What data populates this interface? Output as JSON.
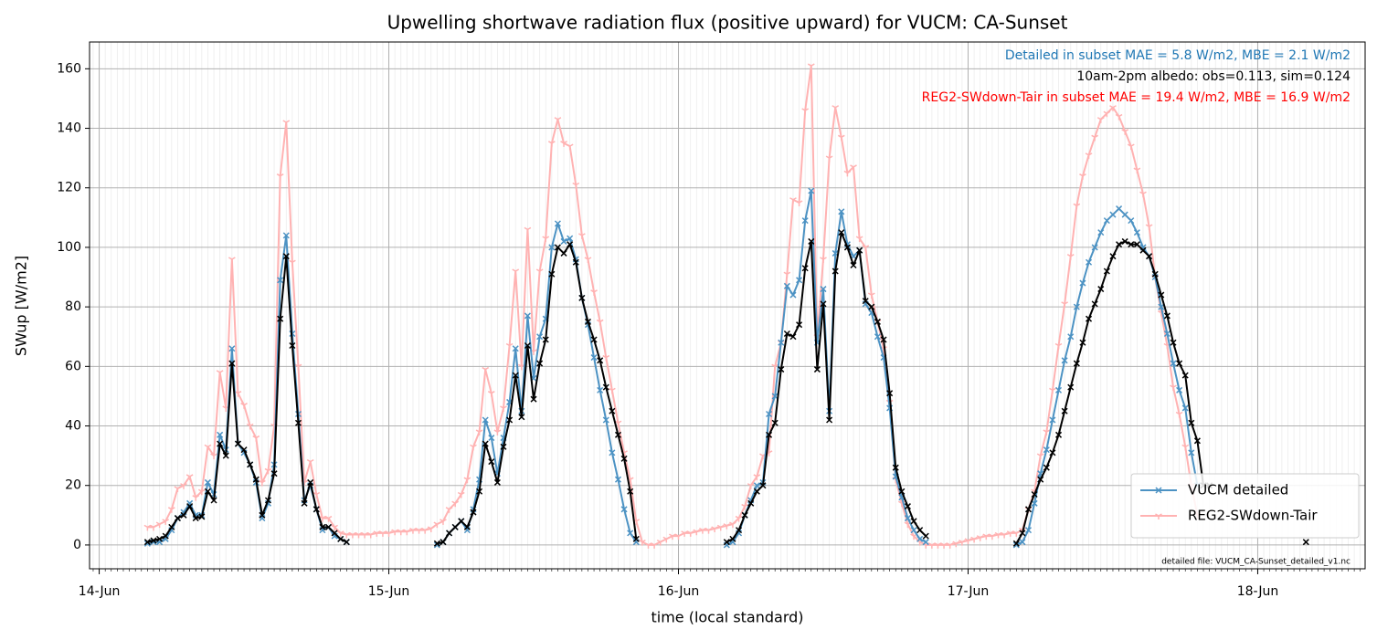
{
  "chart_data": {
    "type": "line",
    "title": "Upwelling shortwave radiation flux (positive upward) for VUCM: CA-Sunset",
    "xlabel": "time (local standard)",
    "ylabel": "SWup [W/m2]",
    "annotations": [
      {
        "text": "Detailed in subset MAE = 5.8 W/m2, MBE = 2.1 W/m2",
        "color": "#1f77b4"
      },
      {
        "text": "10am-2pm albedo: obs=0.113, sim=0.124",
        "color": "#000000"
      },
      {
        "text": "REG2-SWdown-Tair in subset MAE = 19.4 W/m2, MBE = 16.9 W/m2",
        "color": "#ff0000"
      }
    ],
    "footnote": "detailed file: VUCM_CA-Sunset_detailed_v1.nc",
    "x": [
      4,
      4.5,
      5,
      5.5,
      6,
      6.5,
      7,
      7.5,
      8,
      8.5,
      9,
      9.5,
      10,
      10.5,
      11,
      11.5,
      12,
      12.5,
      13,
      13.5,
      14,
      14.5,
      15,
      15.5,
      16,
      16.5,
      17,
      17.5,
      18,
      18.5,
      19,
      19.5,
      20,
      20.5,
      21,
      21.5,
      22,
      22.5,
      23,
      23.5,
      24,
      24.5,
      25,
      25.5,
      26,
      26.5,
      27,
      27.5,
      28,
      28.5,
      29,
      29.5,
      30,
      30.5,
      31,
      31.5,
      32,
      32.5,
      33,
      33.5,
      34,
      34.5,
      35,
      35.5,
      36,
      36.5,
      37,
      37.5,
      38,
      38.5,
      39,
      39.5,
      40,
      40.5,
      41,
      41.5,
      42,
      42.5,
      43,
      43.5,
      44,
      44.5,
      45,
      45.5,
      46,
      46.5,
      47,
      47.5,
      48,
      48.5,
      49,
      49.5,
      50,
      50.5,
      51,
      51.5,
      52,
      52.5,
      53,
      53.5,
      54,
      54.5,
      55,
      55.5,
      56,
      56.5,
      57,
      57.5,
      58,
      58.5,
      59,
      59.5,
      60,
      60.5,
      61,
      61.5,
      62,
      62.5,
      63,
      63.5,
      64,
      64.5,
      65,
      65.5,
      66,
      66.5,
      67,
      67.5,
      68,
      68.5,
      69,
      69.5,
      70,
      70.5,
      71,
      71.5,
      72,
      72.5,
      73,
      73.5,
      74,
      74.5,
      75,
      75.5,
      76,
      76.5,
      77,
      77.5,
      78,
      78.5,
      79,
      79.5,
      80,
      80.5,
      81,
      81.5,
      82,
      82.5,
      83,
      83.5,
      84,
      84.5,
      85,
      85.5,
      86,
      86.5,
      87,
      87.5,
      88,
      88.5,
      89,
      89.5,
      90,
      90.5,
      91,
      91.5,
      92,
      92.5,
      93,
      93.5,
      94,
      94.5,
      95,
      95.5,
      96,
      96.5,
      97,
      97.5,
      98,
      98.5,
      99,
      99.5,
      100
    ],
    "series": [
      {
        "name": "REG2-SWdown-Tair",
        "color": "#ffb2b2",
        "marker": "tri",
        "values": [
          6,
          6,
          7,
          8,
          12,
          19,
          20,
          23,
          16,
          18,
          33,
          30,
          58,
          46,
          96,
          51,
          47,
          40,
          36,
          21,
          25,
          40,
          124,
          142,
          95,
          60,
          21,
          28,
          17,
          9,
          9,
          6,
          4,
          3.5,
          3.5,
          3.5,
          3.5,
          3.5,
          4,
          4,
          4,
          4.5,
          4.5,
          4.5,
          5,
          5,
          5,
          5.5,
          7,
          8,
          12,
          14,
          17,
          22,
          33,
          38,
          59,
          51,
          38,
          46,
          67,
          92,
          60,
          106,
          65,
          92,
          103,
          135,
          143,
          135,
          134,
          121,
          104,
          96,
          85,
          75,
          63,
          52,
          41,
          31,
          22,
          8,
          1,
          0,
          0,
          1,
          2,
          3,
          3,
          4,
          4,
          4.5,
          5,
          5,
          5.5,
          6,
          6.5,
          7,
          9,
          13,
          20,
          23,
          30,
          31,
          60,
          68,
          91,
          116,
          115,
          146,
          161,
          70,
          96,
          130,
          147,
          137,
          125,
          127,
          103,
          100,
          84,
          75,
          66,
          48,
          22,
          14,
          7,
          3,
          1,
          0,
          0,
          0,
          0,
          0,
          0.5,
          1,
          1.5,
          2,
          2.5,
          3,
          3,
          3.5,
          3.5,
          4,
          4,
          5,
          12,
          18,
          30,
          38,
          52,
          67,
          81,
          97,
          114,
          124,
          131,
          137,
          143,
          145,
          147,
          144,
          139,
          134,
          126,
          118,
          107,
          90,
          78,
          67,
          53,
          44,
          33,
          20,
          10,
          null,
          null,
          null,
          null,
          null,
          null,
          null,
          null,
          null,
          null,
          null,
          null,
          null,
          null,
          null,
          null,
          null,
          null
        ]
      },
      {
        "name": "VUCM detailed",
        "color": "#4c92c3",
        "marker": "x",
        "values": [
          0.5,
          1,
          1,
          2,
          5,
          9,
          11,
          14,
          10,
          10,
          21,
          17,
          37,
          32,
          66,
          34,
          31,
          27,
          21,
          9,
          14,
          27,
          89,
          104,
          71,
          44,
          15,
          20,
          12,
          5,
          6,
          3,
          2,
          1,
          null,
          null,
          null,
          null,
          null,
          null,
          null,
          null,
          null,
          null,
          null,
          null,
          null,
          null,
          0,
          1,
          4,
          6,
          8,
          5,
          12,
          22,
          42,
          36,
          24,
          36,
          48,
          66,
          45,
          77,
          56,
          70,
          76,
          100,
          108,
          102,
          103,
          96,
          83,
          74,
          63,
          52,
          42,
          31,
          22,
          12,
          4,
          1,
          null,
          null,
          null,
          null,
          null,
          null,
          null,
          null,
          null,
          null,
          null,
          null,
          null,
          null,
          0,
          1,
          4,
          10,
          15,
          20,
          21,
          44,
          50,
          68,
          87,
          84,
          89,
          109,
          119,
          68,
          86,
          45,
          98,
          112,
          101,
          97,
          99,
          81,
          78,
          70,
          63,
          46,
          23,
          16,
          9,
          5,
          2,
          1,
          null,
          null,
          null,
          null,
          null,
          null,
          null,
          null,
          null,
          null,
          null,
          null,
          null,
          null,
          0,
          1,
          5,
          14,
          24,
          32,
          42,
          52,
          62,
          70,
          80,
          88,
          95,
          100,
          105,
          109,
          111,
          113,
          111,
          109,
          105,
          100,
          97,
          90,
          80,
          71,
          61,
          52,
          46,
          31,
          20,
          null,
          null,
          null,
          null,
          null,
          null,
          null,
          null,
          null,
          null,
          null,
          null,
          null,
          null,
          null,
          null,
          null,
          null
        ]
      },
      {
        "color": "#000000",
        "marker": "x",
        "values": [
          1,
          1.5,
          2,
          3,
          6,
          9,
          10,
          13,
          9,
          9.5,
          18,
          15,
          34,
          30,
          61,
          34,
          32,
          27,
          22,
          10,
          15,
          24,
          76,
          97,
          67,
          41,
          14,
          21,
          12,
          6,
          6,
          4,
          2,
          1,
          null,
          null,
          null,
          null,
          null,
          null,
          null,
          null,
          null,
          null,
          null,
          null,
          null,
          null,
          0.5,
          1,
          4,
          6,
          8,
          6,
          11,
          18,
          34,
          28,
          21,
          33,
          42,
          57,
          43,
          67,
          49,
          61,
          69,
          91,
          100,
          98,
          101,
          95,
          83,
          75,
          69,
          62,
          53,
          45,
          37,
          29,
          18,
          2,
          null,
          null,
          null,
          null,
          null,
          null,
          null,
          null,
          null,
          null,
          null,
          null,
          null,
          null,
          1,
          2,
          5,
          10,
          14,
          18,
          20,
          37,
          41,
          59,
          71,
          70,
          74,
          93,
          102,
          59,
          81,
          42,
          92,
          105,
          100,
          94,
          99,
          82,
          80,
          75,
          69,
          51,
          26,
          18,
          13,
          8,
          5,
          3,
          null,
          null,
          null,
          null,
          null,
          null,
          null,
          null,
          null,
          null,
          null,
          null,
          null,
          null,
          0.5,
          4,
          12,
          17,
          22,
          26,
          31,
          37,
          45,
          53,
          61,
          68,
          76,
          81,
          86,
          92,
          97,
          101,
          102,
          101,
          101,
          99,
          97,
          91,
          84,
          77,
          68,
          61,
          57,
          41,
          35,
          20,
          20,
          null,
          null,
          null,
          null,
          null,
          null,
          null,
          null,
          null,
          null,
          null,
          null,
          null,
          null,
          null,
          1
        ]
      }
    ],
    "xlim": [
      -0.8,
      104.9
    ],
    "xticks": [
      {
        "value": 0,
        "label": "14-Jun"
      },
      {
        "value": 24,
        "label": "15-Jun"
      },
      {
        "value": 48,
        "label": "16-Jun"
      },
      {
        "value": 72,
        "label": "17-Jun"
      },
      {
        "value": 96,
        "label": "18-Jun"
      }
    ],
    "ylim": [
      -8,
      169
    ],
    "yticks": [
      0,
      20,
      40,
      60,
      80,
      100,
      120,
      140,
      160
    ],
    "grid": true,
    "legend": "lower right"
  }
}
